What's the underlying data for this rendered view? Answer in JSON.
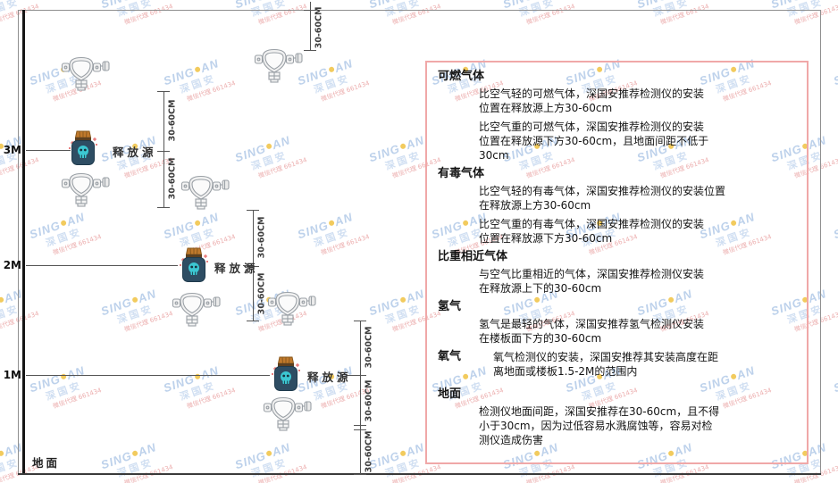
{
  "watermark": {
    "brand": "SING",
    "brand2": "AN",
    "cjk": "深国安",
    "contact": "微信代理 661434"
  },
  "diagram": {
    "height_labels": [
      "3M",
      "2M",
      "1M"
    ],
    "ground_label": "地面",
    "source_label": "释放源",
    "dim_label": "30-60CM",
    "icons": {
      "detector": "gas-detector-icon",
      "source": "release-source-icon"
    }
  },
  "panel": {
    "sections": [
      {
        "title": "可燃气体",
        "paragraphs": [
          [
            "比空气轻的可燃气体，深国安推荐检测仪的安装",
            "位置在释放源上方30-60cm"
          ],
          [
            "比空气重的可燃气体，深国安推荐检测仪的安装",
            "位置在释放源下方30-60cm，且地面间距不低于",
            "30cm"
          ]
        ]
      },
      {
        "title": "有毒气体",
        "paragraphs": [
          [
            "比空气轻的有毒气体，深国安推荐检测仪的安装位置",
            "在释放源上方30-60cm"
          ],
          [
            "比空气重的有毒气体，深国安推荐检测仪的安装",
            "位置在释放源下方30-60cm"
          ]
        ]
      },
      {
        "title": "比重相近气体",
        "paragraphs": [
          [
            "与空气比重相近的气体，深国安推荐检测仪安装",
            "在释放源上下的30-60cm"
          ]
        ]
      },
      {
        "title": "氢气",
        "paragraphs": [
          [
            "氢气是最轻的气体，深国安推荐氢气检测仪安装",
            "在楼板面下方的30-60cm"
          ]
        ]
      },
      {
        "title": "氧气",
        "inline": true,
        "paragraphs": [
          [
            "氧气检测仪的安装，深国安推荐其安装高度在距",
            "离地面或楼板1.5-2M的范围内"
          ]
        ]
      },
      {
        "title": "地面",
        "paragraphs": [
          [
            "检测仪地面间距，深国安推荐在30-60cm，且不得",
            "小于30cm，因为过低容易水溅腐蚀等，容易对检",
            "测仪造成伤害"
          ]
        ]
      }
    ]
  }
}
